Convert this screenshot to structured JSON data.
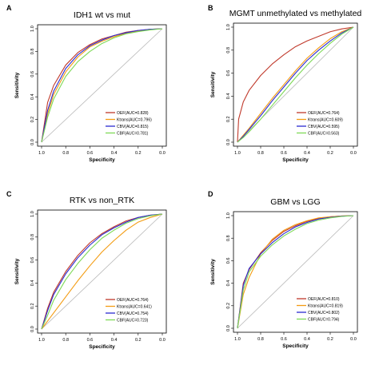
{
  "chart_data": [
    {
      "type": "line",
      "panel": "A",
      "title": "IDH1 wt vs mut",
      "xlabel": "Specificity",
      "ylabel": "Sensitivity",
      "xlim": [
        1.0,
        0.0
      ],
      "ylim": [
        0.0,
        1.0
      ],
      "x_ticks": [
        "1.0",
        "0.8",
        "0.6",
        "0.4",
        "0.2",
        "0.0"
      ],
      "y_ticks": [
        "0.0",
        "0.2",
        "0.4",
        "0.6",
        "0.8",
        "1.0"
      ],
      "legend_position": "bottom-right",
      "series": [
        {
          "name": "OEF(AUC=0.828)",
          "color": "#c0392b",
          "x": [
            1.0,
            0.95,
            0.9,
            0.8,
            0.7,
            0.6,
            0.5,
            0.4,
            0.3,
            0.2,
            0.1,
            0.0
          ],
          "y": [
            0.0,
            0.35,
            0.5,
            0.68,
            0.79,
            0.86,
            0.91,
            0.94,
            0.97,
            0.985,
            0.995,
            1.0
          ]
        },
        {
          "name": "Ktrans(AUC=0.796)",
          "color": "#f39c12",
          "x": [
            1.0,
            0.95,
            0.9,
            0.8,
            0.7,
            0.6,
            0.5,
            0.4,
            0.3,
            0.2,
            0.1,
            0.0
          ],
          "y": [
            0.0,
            0.25,
            0.42,
            0.62,
            0.75,
            0.84,
            0.89,
            0.93,
            0.96,
            0.98,
            0.995,
            1.0
          ]
        },
        {
          "name": "CBV(AUC=0.815)",
          "color": "#2b2bd1",
          "x": [
            1.0,
            0.95,
            0.9,
            0.8,
            0.7,
            0.6,
            0.5,
            0.4,
            0.3,
            0.2,
            0.1,
            0.0
          ],
          "y": [
            0.0,
            0.28,
            0.45,
            0.65,
            0.77,
            0.85,
            0.9,
            0.94,
            0.965,
            0.985,
            0.995,
            1.0
          ]
        },
        {
          "name": "CBF(AUC=0.781)",
          "color": "#7ed957",
          "x": [
            1.0,
            0.95,
            0.9,
            0.8,
            0.7,
            0.6,
            0.5,
            0.4,
            0.3,
            0.2,
            0.1,
            0.0
          ],
          "y": [
            0.0,
            0.22,
            0.38,
            0.58,
            0.71,
            0.8,
            0.87,
            0.92,
            0.955,
            0.975,
            0.99,
            1.0
          ]
        }
      ]
    },
    {
      "type": "line",
      "panel": "B",
      "title": "MGMT unmethylated vs methylated",
      "xlabel": "Specificity",
      "ylabel": "Sensitivity",
      "xlim": [
        1.0,
        0.0
      ],
      "ylim": [
        0.0,
        1.0
      ],
      "x_ticks": [
        "1.0",
        "0.8",
        "0.6",
        "0.4",
        "0.2",
        "0.0"
      ],
      "y_ticks": [
        "0.0",
        "0.2",
        "0.4",
        "0.6",
        "0.8",
        "1.0"
      ],
      "legend_position": "bottom-right",
      "series": [
        {
          "name": "OEF(AUC=0.764)",
          "color": "#c0392b",
          "x": [
            1.0,
            0.99,
            0.95,
            0.9,
            0.8,
            0.7,
            0.6,
            0.5,
            0.4,
            0.3,
            0.2,
            0.1,
            0.0
          ],
          "y": [
            0.0,
            0.2,
            0.35,
            0.45,
            0.58,
            0.68,
            0.76,
            0.83,
            0.88,
            0.92,
            0.96,
            0.985,
            1.0
          ]
        },
        {
          "name": "Ktrans(AUC=0.609)",
          "color": "#f39c12",
          "x": [
            1.0,
            0.95,
            0.9,
            0.8,
            0.7,
            0.6,
            0.5,
            0.4,
            0.3,
            0.2,
            0.1,
            0.0
          ],
          "y": [
            0.0,
            0.06,
            0.12,
            0.25,
            0.38,
            0.5,
            0.62,
            0.73,
            0.82,
            0.9,
            0.96,
            1.0
          ]
        },
        {
          "name": "CBV(AUC=0.595)",
          "color": "#2b2bd1",
          "x": [
            1.0,
            0.95,
            0.9,
            0.8,
            0.7,
            0.6,
            0.5,
            0.4,
            0.3,
            0.2,
            0.1,
            0.0
          ],
          "y": [
            0.0,
            0.05,
            0.11,
            0.23,
            0.36,
            0.48,
            0.6,
            0.71,
            0.8,
            0.88,
            0.95,
            1.0
          ]
        },
        {
          "name": "CBF(AUC=0.563)",
          "color": "#7ed957",
          "x": [
            1.0,
            0.95,
            0.9,
            0.8,
            0.7,
            0.6,
            0.5,
            0.4,
            0.3,
            0.2,
            0.1,
            0.0
          ],
          "y": [
            0.0,
            0.04,
            0.09,
            0.2,
            0.32,
            0.44,
            0.56,
            0.67,
            0.77,
            0.86,
            0.94,
            1.0
          ]
        }
      ]
    },
    {
      "type": "line",
      "panel": "C",
      "title": "RTK vs non_RTK",
      "xlabel": "Specificity",
      "ylabel": "Sensitivity",
      "xlim": [
        1.0,
        0.0
      ],
      "ylim": [
        0.0,
        1.0
      ],
      "x_ticks": [
        "1.0",
        "0.8",
        "0.6",
        "0.4",
        "0.2",
        "0.0"
      ],
      "y_ticks": [
        "0.0",
        "0.2",
        "0.4",
        "0.6",
        "0.8",
        "1.0"
      ],
      "legend_position": "bottom-right",
      "series": [
        {
          "name": "OEF(AUC=0.764)",
          "color": "#c0392b",
          "x": [
            1.0,
            0.95,
            0.9,
            0.8,
            0.7,
            0.6,
            0.5,
            0.4,
            0.3,
            0.2,
            0.1,
            0.0
          ],
          "y": [
            0.0,
            0.18,
            0.32,
            0.5,
            0.64,
            0.75,
            0.83,
            0.89,
            0.94,
            0.97,
            0.99,
            1.0
          ]
        },
        {
          "name": "Ktrans(AUC=0.641)",
          "color": "#f39c12",
          "x": [
            1.0,
            0.95,
            0.9,
            0.8,
            0.7,
            0.6,
            0.5,
            0.4,
            0.3,
            0.2,
            0.1,
            0.0
          ],
          "y": [
            0.0,
            0.07,
            0.14,
            0.28,
            0.42,
            0.55,
            0.67,
            0.77,
            0.86,
            0.93,
            0.97,
            1.0
          ]
        },
        {
          "name": "CBV(AUC=0.754)",
          "color": "#2b2bd1",
          "x": [
            1.0,
            0.95,
            0.9,
            0.8,
            0.7,
            0.6,
            0.5,
            0.4,
            0.3,
            0.2,
            0.1,
            0.0
          ],
          "y": [
            0.0,
            0.16,
            0.3,
            0.48,
            0.62,
            0.73,
            0.82,
            0.88,
            0.93,
            0.97,
            0.99,
            1.0
          ]
        },
        {
          "name": "CBF(AUC=0.723)",
          "color": "#7ed957",
          "x": [
            1.0,
            0.95,
            0.9,
            0.8,
            0.7,
            0.6,
            0.5,
            0.4,
            0.3,
            0.2,
            0.1,
            0.0
          ],
          "y": [
            0.0,
            0.12,
            0.25,
            0.43,
            0.57,
            0.69,
            0.79,
            0.86,
            0.92,
            0.96,
            0.985,
            1.0
          ]
        }
      ]
    },
    {
      "type": "line",
      "panel": "D",
      "title": "GBM vs LGG",
      "xlabel": "Specificity",
      "ylabel": "Sensitivity",
      "xlim": [
        1.0,
        0.0
      ],
      "ylim": [
        0.0,
        1.0
      ],
      "x_ticks": [
        "1.0",
        "0.8",
        "0.6",
        "0.4",
        "0.2",
        "0.0"
      ],
      "y_ticks": [
        "0.0",
        "0.2",
        "0.4",
        "0.6",
        "0.8",
        "1.0"
      ],
      "legend_position": "bottom-right",
      "series": [
        {
          "name": "OEF(AUC=0.810)",
          "color": "#c0392b",
          "x": [
            1.0,
            0.95,
            0.9,
            0.8,
            0.7,
            0.6,
            0.5,
            0.4,
            0.3,
            0.2,
            0.1,
            0.0
          ],
          "y": [
            0.0,
            0.4,
            0.52,
            0.67,
            0.78,
            0.86,
            0.91,
            0.95,
            0.975,
            0.99,
            0.997,
            1.0
          ]
        },
        {
          "name": "Ktrans(AUC=0.819)",
          "color": "#f39c12",
          "x": [
            1.0,
            0.95,
            0.9,
            0.8,
            0.7,
            0.6,
            0.5,
            0.4,
            0.3,
            0.2,
            0.1,
            0.0
          ],
          "y": [
            0.0,
            0.3,
            0.45,
            0.66,
            0.79,
            0.87,
            0.92,
            0.955,
            0.98,
            0.99,
            0.997,
            1.0
          ]
        },
        {
          "name": "CBV(AUC=0.802)",
          "color": "#2b2bd1",
          "x": [
            1.0,
            0.95,
            0.9,
            0.8,
            0.7,
            0.6,
            0.5,
            0.4,
            0.3,
            0.2,
            0.1,
            0.0
          ],
          "y": [
            0.0,
            0.38,
            0.53,
            0.66,
            0.76,
            0.84,
            0.9,
            0.94,
            0.97,
            0.985,
            0.995,
            1.0
          ]
        },
        {
          "name": "CBF(AUC=0.794)",
          "color": "#7ed957",
          "x": [
            1.0,
            0.95,
            0.9,
            0.8,
            0.7,
            0.6,
            0.5,
            0.4,
            0.3,
            0.2,
            0.1,
            0.0
          ],
          "y": [
            0.0,
            0.34,
            0.5,
            0.64,
            0.74,
            0.82,
            0.88,
            0.93,
            0.96,
            0.98,
            0.993,
            1.0
          ]
        }
      ]
    }
  ]
}
